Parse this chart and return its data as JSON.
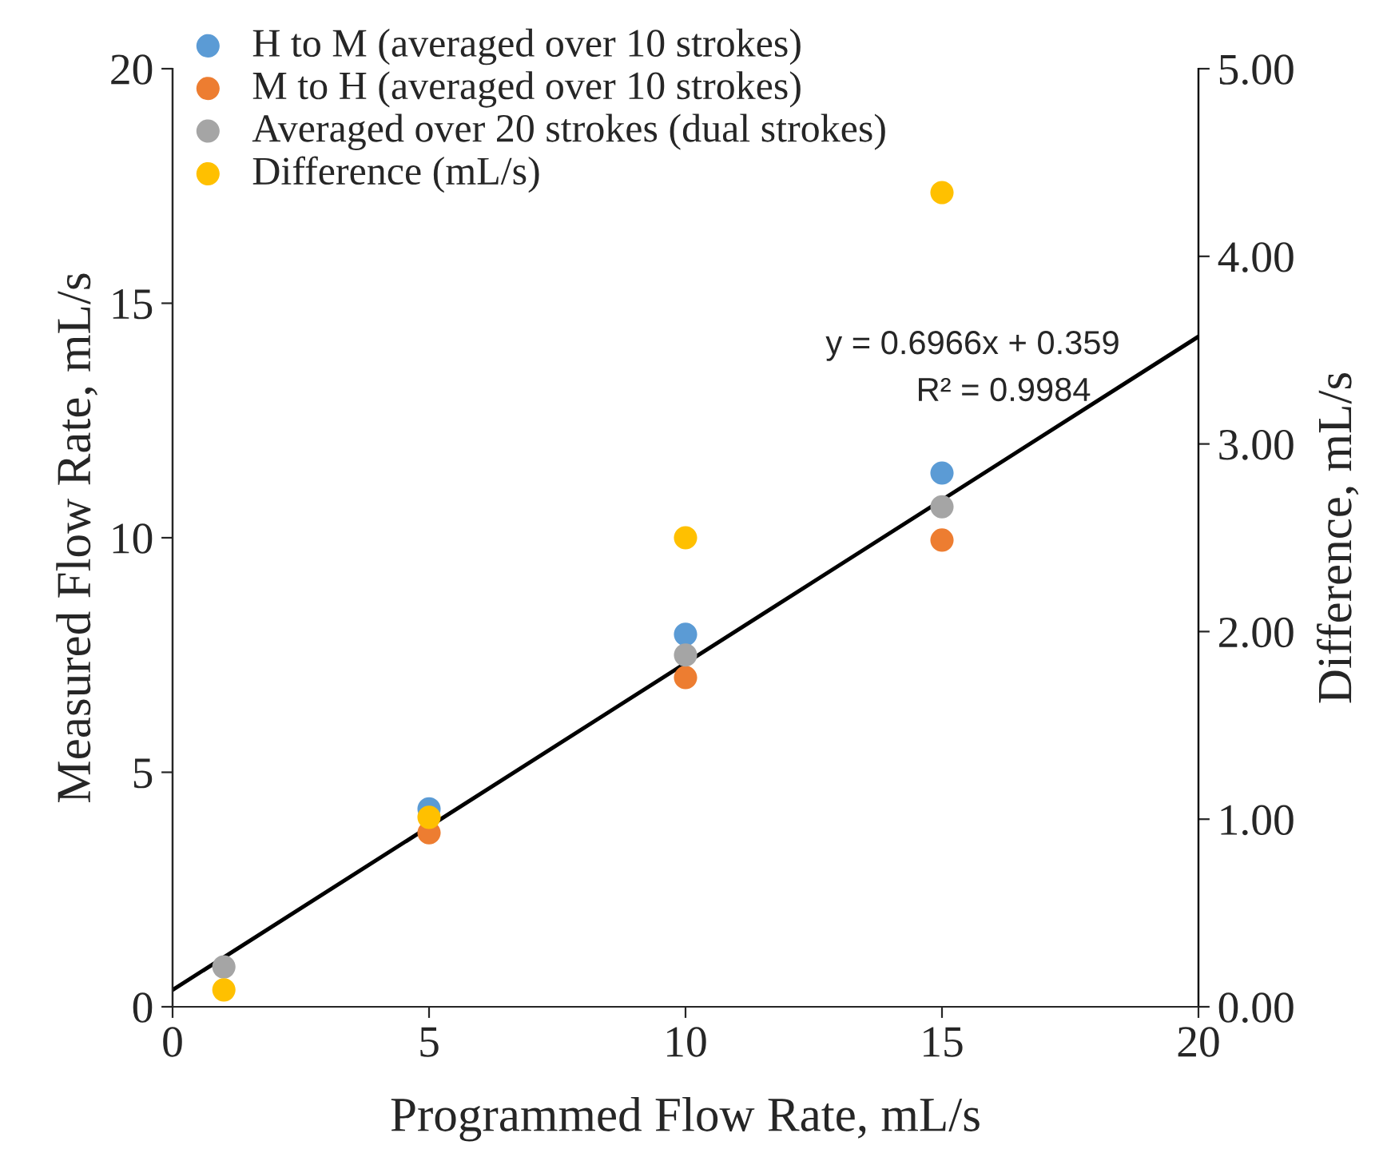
{
  "chart_data": {
    "type": "scatter",
    "xlabel": "Programmed Flow Rate, mL/s",
    "ylabel": "Measured Flow Rate, mL/s",
    "y2label": "Difference, mL/s",
    "x": [
      1,
      5,
      10,
      15
    ],
    "series": [
      {
        "name": "H to M (averaged over 10 strokes)",
        "color": "#5b9bd5",
        "values": [
          null,
          4.22,
          7.94,
          11.38
        ]
      },
      {
        "name": "M to H (averaged over 10 strokes)",
        "color": "#ed7d31",
        "values": [
          null,
          3.71,
          7.02,
          9.95
        ]
      },
      {
        "name": "Averaged over 20 strokes (dual strokes)",
        "color": "#a5a5a5",
        "values": [
          0.85,
          null,
          7.5,
          10.66
        ]
      },
      {
        "name": "Difference (mL/s)",
        "color": "#ffc000",
        "values": [
          0.09,
          1.01,
          2.5,
          4.34
        ],
        "axis": "y2"
      },
      {
        "type": "line",
        "color": "#000000",
        "marker": "none",
        "x": [
          0,
          20
        ],
        "values": [
          0.36,
          14.29
        ]
      }
    ],
    "xlim": [
      0,
      20
    ],
    "xticks": [
      0,
      5,
      10,
      15,
      20
    ],
    "ylim": [
      0,
      20
    ],
    "yticks": [
      0,
      5,
      10,
      15,
      20
    ],
    "y2lim": [
      0,
      5
    ],
    "y2ticks": [
      {
        "value": 0,
        "label": "0.00"
      },
      {
        "value": 1,
        "label": "1.00"
      },
      {
        "value": 2,
        "label": "2.00"
      },
      {
        "value": 3,
        "label": "3.00"
      },
      {
        "value": 4,
        "label": "4.00"
      },
      {
        "value": 5,
        "label": "5.00"
      }
    ],
    "annotations": [
      "y = 0.6966x + 0.359",
      "R² = 0.9984"
    ],
    "legend": "top left",
    "marker": "circle",
    "grid": false
  }
}
